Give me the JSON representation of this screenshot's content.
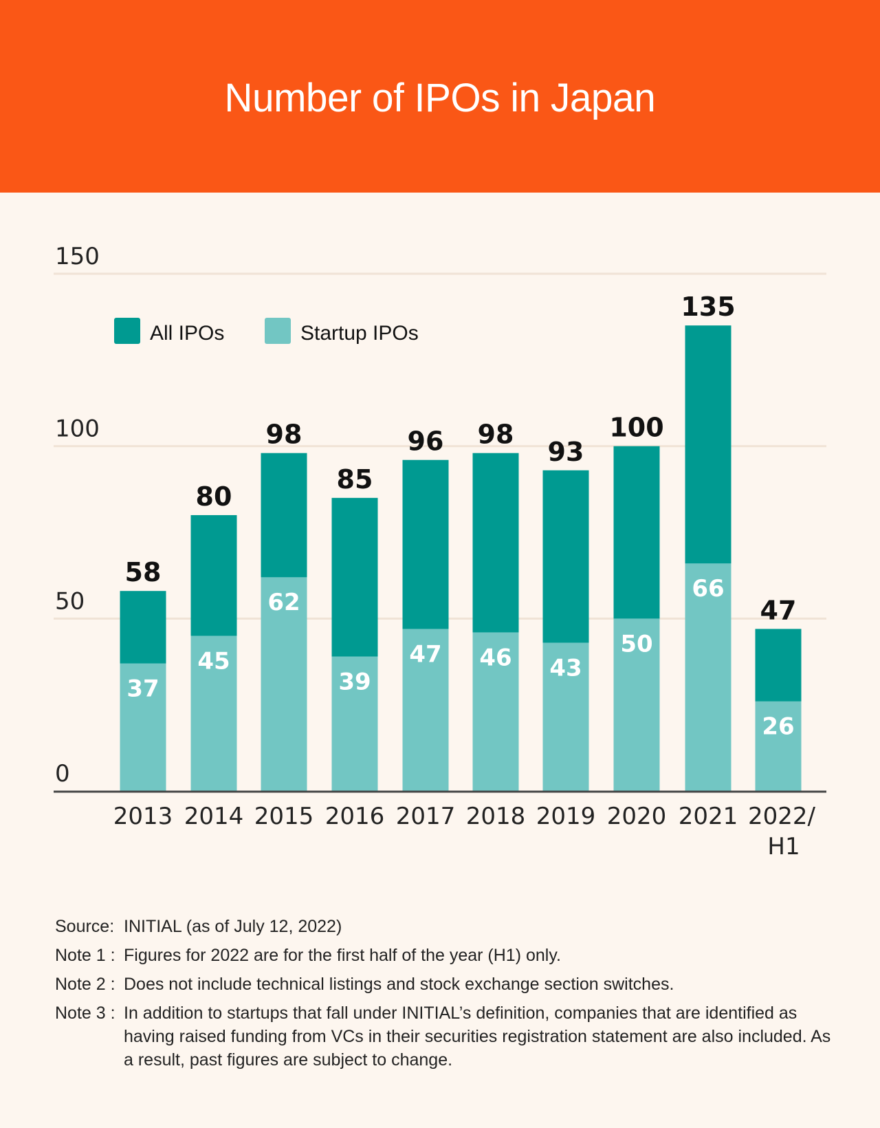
{
  "header": {
    "title": "Number of IPOs in Japan"
  },
  "colors": {
    "header_bg": "#fa5716",
    "page_bg": "#fdf6ef",
    "all_ipos": "#009a91",
    "startup_ipos": "#72c6c3",
    "gridline": "#f0e3d6",
    "axis": "#444444"
  },
  "chart_data": {
    "type": "bar",
    "stacked": true,
    "title": "Number of IPOs in Japan",
    "xlabel": "",
    "ylabel": "",
    "ylim": [
      0,
      150
    ],
    "yticks": [
      0,
      50,
      100,
      150
    ],
    "grid": true,
    "legend": {
      "placement": "top-left",
      "entries": [
        "All IPOs",
        "Startup IPOs"
      ]
    },
    "categories": [
      "2013",
      "2014",
      "2015",
      "2016",
      "2017",
      "2018",
      "2019",
      "2020",
      "2021",
      "2022/\nH1"
    ],
    "category_lines": [
      [
        "2013"
      ],
      [
        "2014"
      ],
      [
        "2015"
      ],
      [
        "2016"
      ],
      [
        "2017"
      ],
      [
        "2018"
      ],
      [
        "2019"
      ],
      [
        "2020"
      ],
      [
        "2021"
      ],
      [
        "2022/",
        "H1"
      ]
    ],
    "series": [
      {
        "name": "All IPOs",
        "values": [
          58,
          80,
          98,
          85,
          96,
          98,
          93,
          100,
          135,
          47
        ]
      },
      {
        "name": "Startup IPOs",
        "values": [
          37,
          45,
          62,
          39,
          47,
          46,
          43,
          50,
          66,
          26
        ]
      }
    ]
  },
  "notes": [
    {
      "key": "Source:",
      "text": "INITIAL (as of July 12, 2022)"
    },
    {
      "key": "Note 1 :",
      "text": "Figures for 2022 are for the first half of the year (H1) only."
    },
    {
      "key": "Note 2 :",
      "text": "Does not include technical listings and stock exchange section switches."
    },
    {
      "key": "Note 3 :",
      "text": "In addition to startups that fall under INITIAL’s definition, companies that are identified as having raised funding from VCs in their securities registration statement are also included. As a result, past figures are subject to change."
    }
  ]
}
